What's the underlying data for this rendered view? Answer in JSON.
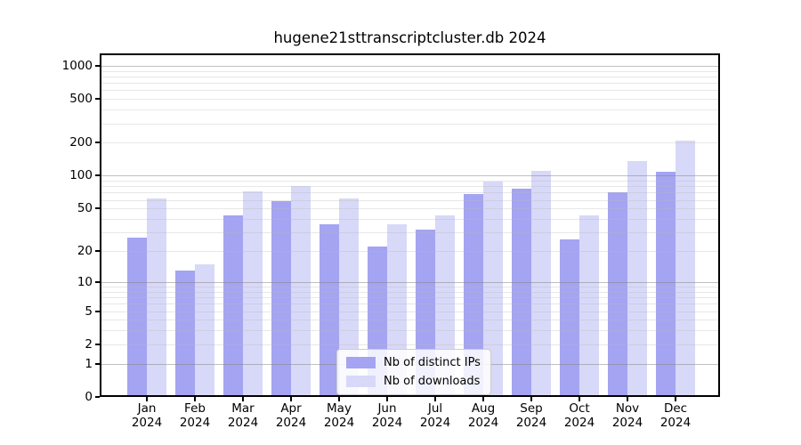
{
  "chart_data": {
    "type": "bar",
    "title": "hugene21sttranscriptcluster.db 2024",
    "year_label": "2024",
    "categories": [
      "Jan",
      "Feb",
      "Mar",
      "Apr",
      "May",
      "Jun",
      "Jul",
      "Aug",
      "Sep",
      "Oct",
      "Nov",
      "Dec"
    ],
    "series": [
      {
        "name": "Nb of distinct IPs",
        "color": "#a4a4f2",
        "values": [
          27,
          13,
          43,
          59,
          36,
          22,
          32,
          68,
          76,
          26,
          70,
          108
        ]
      },
      {
        "name": "Nb of downloads",
        "color": "#d8d8f8",
        "values": [
          62,
          15,
          72,
          80,
          62,
          36,
          43,
          88,
          110,
          43,
          136,
          210
        ]
      }
    ],
    "y_ticks": [
      1000,
      500,
      200,
      100,
      50,
      20,
      10,
      5,
      2,
      1,
      0
    ],
    "y_scale": "log10(value+1)",
    "ylim": [
      0,
      1300
    ],
    "xlabel": "",
    "ylabel": "",
    "grid": true,
    "legend_position": "bottom-center",
    "colors": {
      "axis": "#000000",
      "grid_major": "#c5c5c5",
      "grid_minor": "#e8e8e8",
      "background": "#ffffff"
    }
  }
}
